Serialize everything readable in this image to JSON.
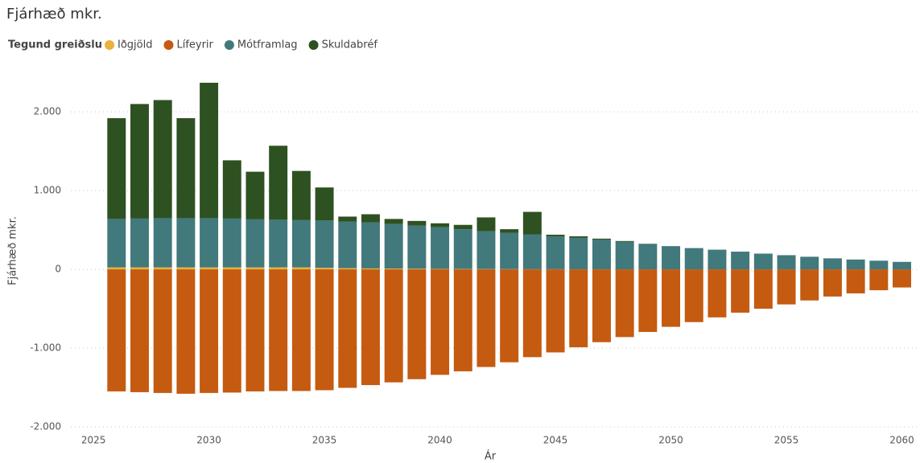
{
  "chart_data": {
    "type": "bar",
    "stacked": true,
    "title": "Fjárhæð mkr.",
    "legend_title": "Tegund greiðslu",
    "legend_position": "top-left",
    "xlabel": "Ár",
    "ylabel": "Fjárhæð mkr.",
    "x": [
      2026,
      2027,
      2028,
      2029,
      2030,
      2031,
      2032,
      2033,
      2034,
      2035,
      2036,
      2037,
      2038,
      2039,
      2040,
      2041,
      2042,
      2043,
      2044,
      2045,
      2046,
      2047,
      2048,
      2049,
      2050,
      2051,
      2052,
      2053,
      2054,
      2055,
      2056,
      2057,
      2058,
      2059,
      2060
    ],
    "series": [
      {
        "name": "Iðgjöld",
        "color": "#e8b23c",
        "values": [
          25,
          25,
          25,
          25,
          25,
          25,
          25,
          25,
          25,
          20,
          15,
          12,
          10,
          8,
          6,
          5,
          4,
          3,
          2,
          2,
          1,
          1,
          0,
          0,
          0,
          0,
          0,
          0,
          0,
          0,
          0,
          0,
          0,
          0,
          0
        ]
      },
      {
        "name": "Lífeyrir",
        "color": "#c55a11",
        "values": [
          -1550,
          -1560,
          -1570,
          -1580,
          -1570,
          -1565,
          -1550,
          -1545,
          -1545,
          -1535,
          -1505,
          -1470,
          -1435,
          -1395,
          -1340,
          -1295,
          -1240,
          -1180,
          -1115,
          -1055,
          -990,
          -925,
          -860,
          -795,
          -730,
          -670,
          -610,
          -550,
          -500,
          -445,
          -395,
          -345,
          -305,
          -265,
          -230
        ]
      },
      {
        "name": "Mótframlag",
        "color": "#41797d",
        "values": [
          615,
          620,
          625,
          625,
          625,
          620,
          610,
          605,
          600,
          600,
          590,
          583,
          565,
          547,
          529,
          505,
          481,
          462,
          443,
          418,
          399,
          374,
          350,
          320,
          295,
          270,
          250,
          225,
          200,
          180,
          160,
          140,
          125,
          110,
          95
        ]
      },
      {
        "name": "Skuldabréf",
        "color": "#2e5122",
        "values": [
          1280,
          1455,
          1500,
          1270,
          1720,
          740,
          605,
          940,
          625,
          420,
          65,
          105,
          65,
          60,
          50,
          55,
          175,
          45,
          285,
          20,
          20,
          15,
          10,
          5,
          0,
          0,
          0,
          0,
          0,
          0,
          0,
          0,
          0,
          0,
          0
        ]
      }
    ],
    "xlim": [
      2024.3,
      2060.4
    ],
    "xticks": [
      2025,
      2030,
      2035,
      2040,
      2045,
      2050,
      2055,
      2060
    ],
    "ylim": [
      -2000,
      2400
    ],
    "yticks": [
      {
        "value": -2000,
        "label": "-2.000"
      },
      {
        "value": -1000,
        "label": "-1.000"
      },
      0,
      {
        "value": 1000,
        "label": "1.000"
      },
      {
        "value": 2000,
        "label": "2.000"
      }
    ],
    "grid": true
  }
}
